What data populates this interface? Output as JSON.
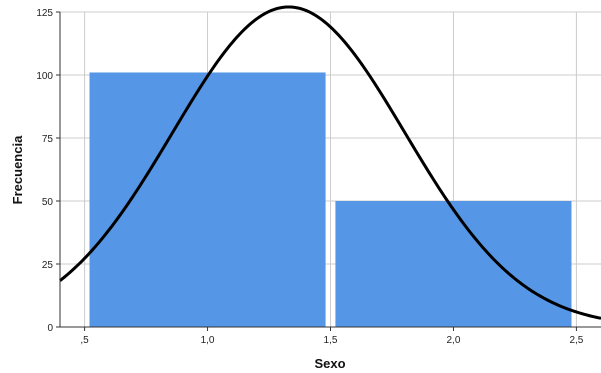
{
  "chart_data": {
    "type": "bar",
    "title": "",
    "xlabel": "Sexo",
    "ylabel": "Frecuencia",
    "xlim": [
      0.4,
      2.6
    ],
    "ylim": [
      0,
      125
    ],
    "grid": true,
    "x_ticks": [
      {
        "value": 0.5,
        "label": ",5"
      },
      {
        "value": 1.0,
        "label": "1,0"
      },
      {
        "value": 1.5,
        "label": "1,5"
      },
      {
        "value": 2.0,
        "label": "2,0"
      },
      {
        "value": 2.5,
        "label": "2,5"
      }
    ],
    "y_ticks": [
      {
        "value": 0,
        "label": "0"
      },
      {
        "value": 25,
        "label": "25"
      },
      {
        "value": 50,
        "label": "50"
      },
      {
        "value": 75,
        "label": "75"
      },
      {
        "value": 100,
        "label": "100"
      },
      {
        "value": 125,
        "label": "125"
      }
    ],
    "bars": [
      {
        "x0": 0.52,
        "x1": 1.48,
        "value": 101
      },
      {
        "x0": 1.52,
        "x1": 2.48,
        "value": 50
      }
    ],
    "normal_curve": {
      "mean": 1.33,
      "sd": 0.473,
      "peak": 127
    },
    "colors": {
      "bar": "#5597e6",
      "curve": "#000000",
      "grid": "#cccccc",
      "axis": "#333333"
    }
  }
}
